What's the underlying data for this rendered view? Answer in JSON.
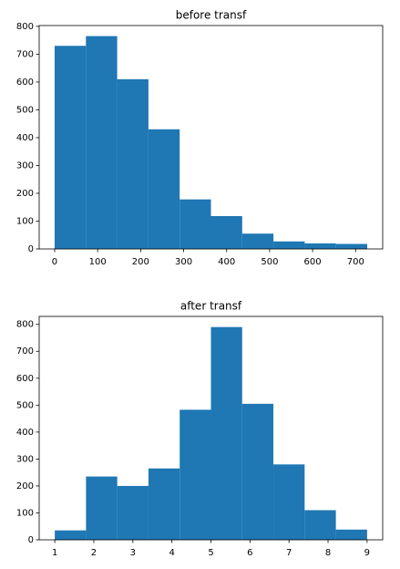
{
  "chart_data": [
    {
      "type": "histogram",
      "title": "before transf",
      "color": "#1f77b4",
      "bins": [
        0,
        72.7,
        145.4,
        218.1,
        290.8,
        363.5,
        436.2,
        508.9,
        581.6,
        654.3,
        727
      ],
      "values": [
        730,
        765,
        610,
        430,
        178,
        118,
        55,
        27,
        20,
        18
      ],
      "xlim": [
        -36,
        763
      ],
      "xticks": [
        0,
        100,
        200,
        300,
        400,
        500,
        600,
        700
      ],
      "ylim": [
        0,
        803
      ],
      "yticks": [
        0,
        100,
        200,
        300,
        400,
        500,
        600,
        700,
        800
      ]
    },
    {
      "type": "histogram",
      "title": "after transf",
      "color": "#1f77b4",
      "bins": [
        1,
        1.8,
        2.6,
        3.4,
        4.2,
        5,
        5.8,
        6.6,
        7.4,
        8.2,
        9
      ],
      "values": [
        35,
        235,
        200,
        265,
        483,
        790,
        505,
        280,
        110,
        38
      ],
      "xlim": [
        0.6,
        9.4
      ],
      "xticks": [
        1,
        2,
        3,
        4,
        5,
        6,
        7,
        8,
        9
      ],
      "ylim": [
        0,
        829.5
      ],
      "yticks": [
        0,
        100,
        200,
        300,
        400,
        500,
        600,
        700,
        800
      ]
    }
  ]
}
